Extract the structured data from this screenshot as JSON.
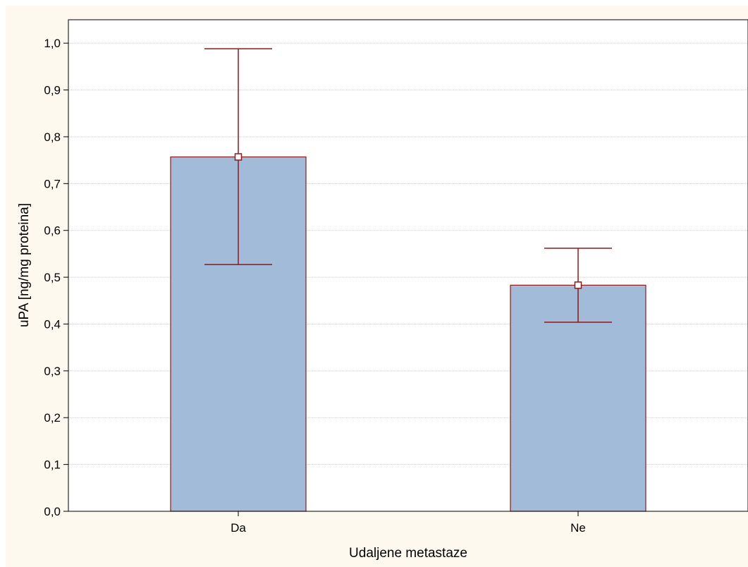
{
  "chart_data": {
    "type": "bar",
    "categories": [
      "Da",
      "Ne"
    ],
    "values": [
      0.757,
      0.483
    ],
    "error_bars": {
      "upper": [
        0.988,
        0.562
      ],
      "lower": [
        0.527,
        0.404
      ]
    },
    "xlabel": "Udaljene metastaze",
    "ylabel": "uPA [ng/mg proteina]",
    "ylim": [
      0,
      1.05
    ],
    "yticks": [
      "0,0",
      "0,1",
      "0,2",
      "0,3",
      "0,4",
      "0,5",
      "0,6",
      "0,7",
      "0,8",
      "0,9",
      "1,0"
    ],
    "grid": true,
    "colors": {
      "bar_fill": "#a2bbd9",
      "bar_stroke": "#8b1a1a",
      "error_bar": "#8b1a1a",
      "background": "#fdf9ee",
      "grid": "#cccccc"
    }
  }
}
